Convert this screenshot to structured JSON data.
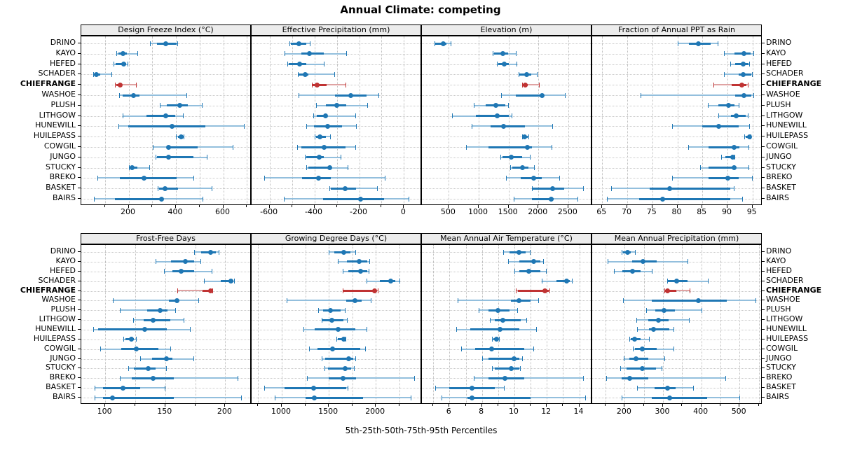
{
  "title": "Annual Climate: competing",
  "footer": "5th-25th-50th-75th-95th Percentiles",
  "colors": {
    "series": "#1f77b4",
    "series_light": "#93bfdd",
    "highlight": "#c03333",
    "highlight_light": "#dfa3a3",
    "grid": "#c3c3c3",
    "strip_bg": "#ececec"
  },
  "sites": [
    "DRINO",
    "KAYO",
    "HEFED",
    "SCHADER",
    "CHIEFRANGE",
    "WASHOE",
    "PLUSH",
    "LITHGOW",
    "HUNEWILL",
    "HUILEPASS",
    "COWGIL",
    "JUNGO",
    "STUCKY",
    "BREKO",
    "BASKET",
    "BAIRS"
  ],
  "highlight_site": "CHIEFRANGE",
  "chart_data": {
    "type": "interval-dotplot",
    "percentiles": [
      5,
      25,
      50,
      75,
      95
    ],
    "layout": "2 rows x 4 columns, shared site axis, free x scales",
    "panels": [
      {
        "title": "Design Freeze Index (°C)",
        "ticks": [
          200,
          400,
          600
        ],
        "grid": [
          100,
          200,
          300,
          400,
          500,
          600,
          700
        ],
        "xlim": [
          0,
          720
        ],
        "values": [
          [
            290,
            320,
            358,
            402,
            409
          ],
          [
            148,
            158,
            175,
            192,
            241
          ],
          [
            135,
            144,
            180,
            191,
            197
          ],
          [
            49,
            52,
            64,
            79,
            130
          ],
          [
            143,
            147,
            163,
            173,
            235
          ],
          [
            160,
            175,
            220,
            246,
            446
          ],
          [
            333,
            360,
            417,
            449,
            513
          ],
          [
            175,
            274,
            358,
            396,
            432
          ],
          [
            158,
            197,
            385,
            523,
            690
          ],
          [
            401,
            409,
            421,
            430,
            434
          ],
          [
            301,
            362,
            368,
            493,
            644
          ],
          [
            315,
            321,
            368,
            474,
            533
          ],
          [
            202,
            205,
            215,
            236,
            289
          ],
          [
            69,
            162,
            266,
            404,
            476
          ],
          [
            324,
            330,
            355,
            409,
            553
          ],
          [
            54,
            143,
            338,
            345,
            515
          ]
        ]
      },
      {
        "title": "Effective Precipitation (mm)",
        "ticks": [
          -600,
          -400,
          -200,
          0
        ],
        "grid": [
          -600,
          -500,
          -400,
          -300,
          -200,
          -100,
          0
        ],
        "xlim": [
          -680,
          80
        ],
        "values": [
          [
            -510,
            -504,
            -470,
            -436,
            -416
          ],
          [
            -532,
            -457,
            -423,
            -358,
            -254
          ],
          [
            -522,
            -513,
            -465,
            -436,
            -354
          ],
          [
            -475,
            -470,
            -440,
            -425,
            -309
          ],
          [
            -411,
            -408,
            -388,
            -345,
            -257
          ],
          [
            -470,
            -307,
            -237,
            -166,
            -111
          ],
          [
            -393,
            -348,
            -301,
            -258,
            -161
          ],
          [
            -405,
            -390,
            -350,
            -341,
            -215
          ],
          [
            -437,
            -402,
            -341,
            -276,
            -210
          ],
          [
            -398,
            -393,
            -374,
            -348,
            -326
          ],
          [
            -478,
            -457,
            -358,
            -262,
            -213
          ],
          [
            -442,
            -437,
            -377,
            -358,
            -279
          ],
          [
            -437,
            -426,
            -330,
            -322,
            -250
          ],
          [
            -624,
            -454,
            -383,
            -327,
            -83
          ],
          [
            -333,
            -327,
            -263,
            -213,
            -116
          ],
          [
            -537,
            -361,
            -194,
            -90,
            24
          ]
        ]
      },
      {
        "title": "Elevation (m)",
        "ticks": [
          500,
          1000,
          1500,
          2000,
          2500
        ],
        "grid": [
          500,
          1000,
          1500,
          2000,
          2500
        ],
        "xlim": [
          50,
          2900
        ],
        "values": [
          [
            260,
            275,
            405,
            460,
            540
          ],
          [
            1230,
            1258,
            1400,
            1490,
            1632
          ],
          [
            1308,
            1328,
            1430,
            1508,
            1645
          ],
          [
            1665,
            1684,
            1808,
            1878,
            1984
          ],
          [
            1723,
            1731,
            1781,
            1820,
            2022
          ],
          [
            1374,
            1618,
            2060,
            2092,
            2453
          ],
          [
            920,
            1114,
            1290,
            1444,
            1502
          ],
          [
            558,
            958,
            1316,
            1508,
            1557
          ],
          [
            880,
            1200,
            1420,
            1775,
            2248
          ],
          [
            1731,
            1743,
            1770,
            1820,
            1848
          ],
          [
            791,
            1160,
            1813,
            1898,
            2228
          ],
          [
            1366,
            1401,
            1549,
            1731,
            1867
          ],
          [
            1529,
            1568,
            1731,
            1830,
            1937
          ],
          [
            1452,
            1704,
            1925,
            2053,
            2364
          ],
          [
            1890,
            1898,
            2240,
            2434,
            2764
          ],
          [
            1580,
            1890,
            2209,
            2250,
            2667
          ]
        ]
      },
      {
        "title": "Fraction of Annual PPT as Rain",
        "ticks": [
          65,
          70,
          75,
          80,
          85,
          90,
          95
        ],
        "grid": [
          65,
          70,
          75,
          80,
          85,
          90,
          95
        ],
        "xlim": [
          63,
          97
        ],
        "values": [
          [
            80.1,
            82.3,
            84.2,
            86.6,
            88.2
          ],
          [
            89.3,
            91.4,
            93.3,
            94.6,
            95.3
          ],
          [
            90.6,
            91.6,
            93.2,
            94.2,
            94.5
          ],
          [
            89.3,
            92.2,
            93.2,
            94.7,
            95.0
          ],
          [
            87.2,
            90.8,
            92.8,
            93.8,
            94.2
          ],
          [
            72.7,
            91.5,
            93.3,
            94.7,
            95.3
          ],
          [
            86.1,
            88.2,
            90.2,
            91.4,
            92.4
          ],
          [
            88.2,
            90.7,
            91.7,
            93.7,
            94.2
          ],
          [
            79.0,
            85.0,
            88.3,
            92.3,
            94.5
          ],
          [
            93.3,
            93.6,
            94.4,
            94.6,
            94.7
          ],
          [
            82.1,
            86.2,
            91.3,
            92.4,
            94.3
          ],
          [
            88.7,
            89.6,
            91.0,
            91.3,
            91.5
          ],
          [
            84.6,
            86.2,
            91.3,
            91.6,
            94.4
          ],
          [
            78.9,
            86.2,
            90.1,
            92.2,
            95.0
          ],
          [
            66.8,
            74.4,
            78.5,
            90.5,
            91.4
          ],
          [
            65.9,
            72.3,
            77.0,
            90.5,
            93.1
          ]
        ]
      },
      {
        "title": "Frost-Free Days",
        "ticks": [
          100,
          150,
          200
        ],
        "grid": [
          100,
          125,
          150,
          175,
          200
        ],
        "xlim": [
          80,
          222
        ],
        "values": [
          [
            174,
            180,
            188,
            192,
            195
          ],
          [
            142,
            155,
            167,
            174,
            180
          ],
          [
            149,
            156,
            163,
            174,
            189
          ],
          [
            182,
            196,
            205,
            207,
            208
          ],
          [
            160,
            181,
            188,
            189,
            190
          ],
          [
            106,
            153,
            160,
            161,
            178
          ],
          [
            112,
            135,
            146,
            152,
            159
          ],
          [
            123,
            132,
            140,
            154,
            166
          ],
          [
            90,
            94,
            133,
            151,
            171
          ],
          [
            115,
            117,
            122,
            124,
            126
          ],
          [
            96,
            113,
            126,
            144,
            155
          ],
          [
            129,
            139,
            151,
            156,
            174
          ],
          [
            119,
            124,
            136,
            142,
            151
          ],
          [
            112,
            122,
            140,
            157,
            211
          ],
          [
            91,
            98,
            115,
            129,
            150
          ],
          [
            91,
            98,
            106,
            157,
            214
          ]
        ]
      },
      {
        "title": "Growing Degree Days (°C)",
        "ticks": [
          1000,
          1500,
          2000
        ],
        "grid": [
          750,
          1000,
          1250,
          1500,
          1750,
          2000,
          2250
        ],
        "xlim": [
          680,
          2490
        ],
        "values": [
          [
            1502,
            1559,
            1659,
            1731,
            1788
          ],
          [
            1597,
            1689,
            1820,
            1907,
            1937
          ],
          [
            1646,
            1709,
            1838,
            1912,
            1933
          ],
          [
            1900,
            2044,
            2161,
            2206,
            2261
          ],
          [
            1646,
            1651,
            1987,
            2000,
            2029
          ],
          [
            1049,
            1683,
            1776,
            1850,
            1957
          ],
          [
            1385,
            1440,
            1515,
            1627,
            1681
          ],
          [
            1422,
            1435,
            1534,
            1659,
            1701
          ],
          [
            1233,
            1348,
            1600,
            1780,
            1912
          ],
          [
            1584,
            1597,
            1659,
            1671,
            1683
          ],
          [
            1291,
            1378,
            1539,
            1833,
            1895
          ],
          [
            1427,
            1465,
            1709,
            1758,
            1788
          ],
          [
            1457,
            1489,
            1671,
            1738,
            1771
          ],
          [
            1266,
            1502,
            1651,
            1793,
            2414
          ],
          [
            813,
            1030,
            1340,
            1683,
            1709
          ],
          [
            922,
            1254,
            1348,
            1863,
            2377
          ]
        ]
      },
      {
        "title": "Mean Annual Air Temperature (°C)",
        "ticks": [
          6,
          8,
          10,
          12,
          14
        ],
        "grid": [
          5,
          6,
          7,
          8,
          9,
          10,
          11,
          12,
          13,
          14
        ],
        "xlim": [
          4.3,
          14.8
        ],
        "values": [
          [
            9.3,
            9.7,
            10.3,
            10.7,
            11.0
          ],
          [
            9.6,
            10.3,
            11.2,
            11.6,
            11.8
          ],
          [
            10.0,
            10.3,
            10.9,
            11.6,
            12.0
          ],
          [
            11.7,
            12.6,
            13.2,
            13.4,
            13.6
          ],
          [
            10.1,
            10.2,
            11.9,
            12.1,
            12.2
          ],
          [
            6.5,
            9.8,
            10.3,
            11.0,
            11.5
          ],
          [
            7.8,
            8.4,
            9.0,
            9.7,
            10.2
          ],
          [
            8.5,
            8.8,
            9.3,
            10.4,
            10.8
          ],
          [
            6.4,
            7.3,
            9.1,
            10.3,
            11.4
          ],
          [
            8.6,
            8.7,
            8.9,
            9.0,
            9.1
          ],
          [
            6.7,
            7.6,
            8.6,
            10.6,
            11.2
          ],
          [
            8.0,
            8.4,
            10.0,
            10.3,
            10.5
          ],
          [
            8.6,
            8.8,
            9.8,
            10.3,
            10.4
          ],
          [
            7.5,
            8.4,
            9.4,
            10.6,
            14.3
          ],
          [
            5.1,
            6.0,
            7.4,
            8.8,
            9.4
          ],
          [
            5.5,
            7.1,
            7.4,
            11.0,
            14.4
          ]
        ]
      },
      {
        "title": "Mean Annual Precipitation (mm)",
        "ticks": [
          200,
          300,
          400,
          500
        ],
        "grid": [
          150,
          200,
          250,
          300,
          350,
          400,
          450,
          500,
          550
        ],
        "xlim": [
          115,
          560
        ],
        "values": [
          [
            192,
            195,
            207,
            216,
            229
          ],
          [
            156,
            219,
            248,
            284,
            365
          ],
          [
            171,
            193,
            221,
            241,
            273
          ],
          [
            311,
            312,
            335,
            364,
            418
          ],
          [
            303,
            304,
            312,
            335,
            371
          ],
          [
            196,
            271,
            393,
            467,
            543
          ],
          [
            256,
            279,
            303,
            332,
            402
          ],
          [
            230,
            261,
            288,
            315,
            369
          ],
          [
            232,
            263,
            275,
            316,
            329
          ],
          [
            212,
            215,
            226,
            241,
            265
          ],
          [
            221,
            227,
            246,
            284,
            329
          ],
          [
            197,
            212,
            230,
            262,
            306
          ],
          [
            188,
            204,
            246,
            282,
            298
          ],
          [
            152,
            192,
            212,
            262,
            465
          ],
          [
            233,
            278,
            311,
            333,
            380
          ],
          [
            191,
            271,
            317,
            415,
            501
          ]
        ]
      }
    ]
  }
}
